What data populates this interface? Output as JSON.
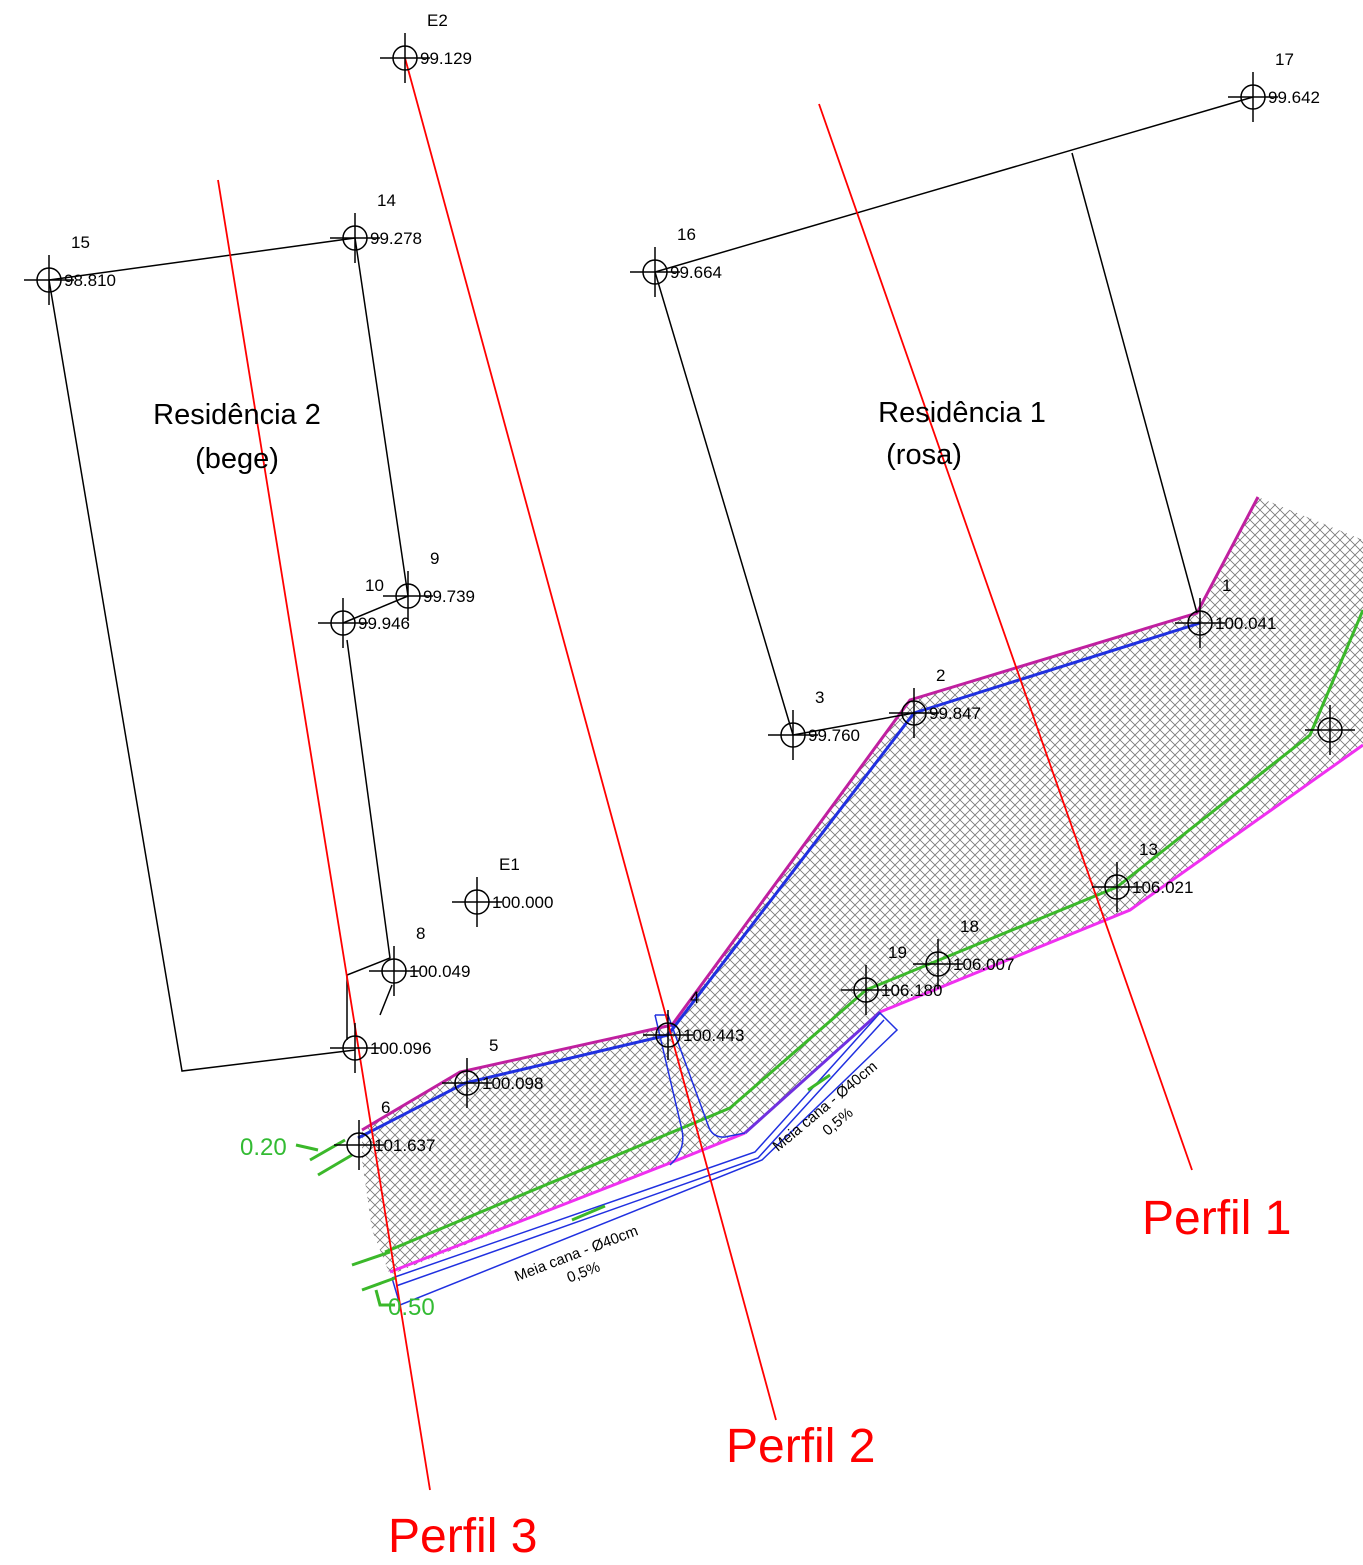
{
  "buildings": [
    {
      "name": "Residência 2",
      "color": "(bege)"
    },
    {
      "name": "Residência 1",
      "color": "(rosa)"
    }
  ],
  "profiles": [
    "Perfil 1",
    "Perfil 2",
    "Perfil 3"
  ],
  "dimensions": [
    "0.20",
    "0.50"
  ],
  "channels": [
    {
      "label": "Meia cana - Ø40cm",
      "slope": "0,5%"
    },
    {
      "label": "Meia cana - Ø40cm",
      "slope": "0,5%"
    }
  ],
  "points": [
    {
      "id": "E2",
      "elevation": "99.129"
    },
    {
      "id": "17",
      "elevation": "99.642"
    },
    {
      "id": "14",
      "elevation": "99.278"
    },
    {
      "id": "15",
      "elevation": "98.810"
    },
    {
      "id": "16",
      "elevation": "99.664"
    },
    {
      "id": "9",
      "elevation": "99.739"
    },
    {
      "id": "10",
      "elevation": "99.946"
    },
    {
      "id": "1",
      "elevation": "100.041"
    },
    {
      "id": "3",
      "elevation": "99.760"
    },
    {
      "id": "2",
      "elevation": "99.847"
    },
    {
      "id": "E1",
      "elevation": "100.000"
    },
    {
      "id": "8",
      "elevation": "100.049"
    },
    {
      "elevation": "100.096"
    },
    {
      "id": "5",
      "elevation": "100.098"
    },
    {
      "id": "4",
      "elevation": "100.443"
    },
    {
      "id": "6",
      "elevation": "101.637"
    },
    {
      "id": "19",
      "elevation": "106.180"
    },
    {
      "id": "18",
      "elevation": "106.007"
    },
    {
      "id": "13",
      "elevation": "106.021"
    }
  ]
}
